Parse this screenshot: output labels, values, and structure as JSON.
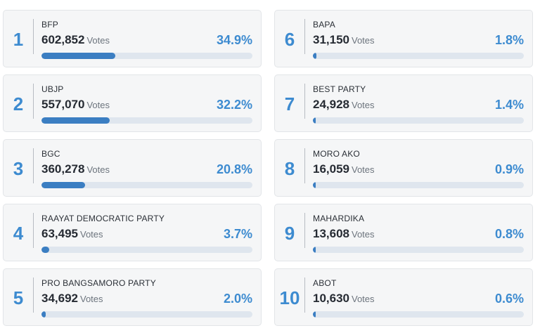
{
  "results": [
    {
      "rank": "1",
      "party": "BFP",
      "votes": "602,852",
      "votes_label": "Votes",
      "pct": "34.9%",
      "share": 0.349
    },
    {
      "rank": "2",
      "party": "UBJP",
      "votes": "557,070",
      "votes_label": "Votes",
      "pct": "32.2%",
      "share": 0.322
    },
    {
      "rank": "3",
      "party": "BGC",
      "votes": "360,278",
      "votes_label": "Votes",
      "pct": "20.8%",
      "share": 0.208
    },
    {
      "rank": "4",
      "party": "RAAYAT DEMOCRATIC PARTY",
      "votes": "63,495",
      "votes_label": "Votes",
      "pct": "3.7%",
      "share": 0.037
    },
    {
      "rank": "5",
      "party": "PRO BANGSAMORO PARTY",
      "votes": "34,692",
      "votes_label": "Votes",
      "pct": "2.0%",
      "share": 0.02
    },
    {
      "rank": "6",
      "party": "BAPA",
      "votes": "31,150",
      "votes_label": "Votes",
      "pct": "1.8%",
      "share": 0.018
    },
    {
      "rank": "7",
      "party": "BEST PARTY",
      "votes": "24,928",
      "votes_label": "Votes",
      "pct": "1.4%",
      "share": 0.014
    },
    {
      "rank": "8",
      "party": "MORO AKO",
      "votes": "16,059",
      "votes_label": "Votes",
      "pct": "0.9%",
      "share": 0.009
    },
    {
      "rank": "9",
      "party": "MAHARDIKA",
      "votes": "13,608",
      "votes_label": "Votes",
      "pct": "0.8%",
      "share": 0.008
    },
    {
      "rank": "10",
      "party": "ABOT",
      "votes": "10,630",
      "votes_label": "Votes",
      "pct": "0.6%",
      "share": 0.006
    }
  ],
  "colors": {
    "accent": "#3d8bd0",
    "bar_fill": "#3b7ec2",
    "bar_track": "#dfe6ee",
    "card_bg": "#f5f6f7"
  }
}
